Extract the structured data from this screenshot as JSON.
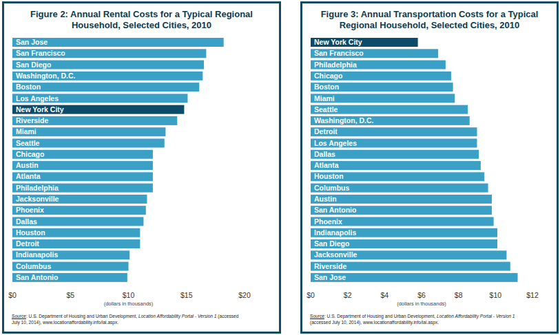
{
  "chart_data": [
    {
      "type": "bar",
      "orientation": "horizontal",
      "title": "Figure 2: Annual Rental Costs for a Typical Regional Household, Selected Cities, 2010",
      "categories": [
        "San Jose",
        "San Francisco",
        "San Diego",
        "Washington, D.C.",
        "Boston",
        "Los Angeles",
        "New York City",
        "Riverside",
        "Miami",
        "Seattle",
        "Chicago",
        "Austin",
        "Atlanta",
        "Philadelphia",
        "Jacksonville",
        "Phoenix",
        "Dallas",
        "Houston",
        "Detroit",
        "Indianapolis",
        "Columbus",
        "San Antonio"
      ],
      "values": [
        18.2,
        16.7,
        16.5,
        16.4,
        16.1,
        15.1,
        14.8,
        14.2,
        13.2,
        13.1,
        12.1,
        12.1,
        12.1,
        12.1,
        11.6,
        11.5,
        11.3,
        11.0,
        11.0,
        10.1,
        10.0,
        9.9
      ],
      "colors": [
        "#3aa0c5",
        "#3aa0c5",
        "#3aa0c5",
        "#3aa0c5",
        "#3aa0c5",
        "#3aa0c5",
        "#0d4c68",
        "#3aa0c5",
        "#3aa0c5",
        "#3aa0c5",
        "#3aa0c5",
        "#3aa0c5",
        "#3aa0c5",
        "#3aa0c5",
        "#3aa0c5",
        "#3aa0c5",
        "#3aa0c5",
        "#3aa0c5",
        "#3aa0c5",
        "#3aa0c5",
        "#3aa0c5",
        "#3aa0c5"
      ],
      "xlim": [
        0,
        20
      ],
      "xticks": [
        {
          "value": 0,
          "label": "$0"
        },
        {
          "value": 5,
          "label": "$5"
        },
        {
          "value": 10,
          "label": "$10"
        },
        {
          "value": 15,
          "label": "$15"
        },
        {
          "value": 20,
          "label": "$20"
        }
      ],
      "x_label": "(dollars in thousands)",
      "grid": false,
      "source": [
        "Source",
        ": U.S. Department of Housing and Urban Development, ",
        "Location Affordability Portal - Version 1",
        " (accessed July 10, 2014), www.locationaffordability.info/lai.aspx."
      ]
    },
    {
      "type": "bar",
      "orientation": "horizontal",
      "title": "Figure 3: Annual Transportation Costs for a Typical Regional Household, Selected Cities, 2010",
      "categories": [
        "New York City",
        "San Francisco",
        "Philadelphia",
        "Chicago",
        "Boston",
        "Miami",
        "Seattle",
        "Washington, D.C.",
        "Detroit",
        "Los Angeles",
        "Dallas",
        "Atlanta",
        "Houston",
        "Columbus",
        "Austin",
        "San Antonio",
        "Phoenix",
        "Indianapolis",
        "San Diego",
        "Jacksonville",
        "Riverside",
        "San Jose"
      ],
      "values": [
        5.8,
        6.9,
        7.3,
        7.6,
        7.7,
        7.8,
        8.5,
        8.6,
        9.0,
        9.0,
        9.1,
        9.2,
        9.4,
        9.6,
        9.8,
        9.8,
        9.9,
        10.1,
        10.1,
        10.6,
        10.8,
        11.2
      ],
      "colors": [
        "#0d4c68",
        "#3aa0c5",
        "#3aa0c5",
        "#3aa0c5",
        "#3aa0c5",
        "#3aa0c5",
        "#3aa0c5",
        "#3aa0c5",
        "#3aa0c5",
        "#3aa0c5",
        "#3aa0c5",
        "#3aa0c5",
        "#3aa0c5",
        "#3aa0c5",
        "#3aa0c5",
        "#3aa0c5",
        "#3aa0c5",
        "#3aa0c5",
        "#3aa0c5",
        "#3aa0c5",
        "#3aa0c5",
        "#3aa0c5"
      ],
      "xlim": [
        0,
        12
      ],
      "xticks": [
        {
          "value": 0,
          "label": "$0"
        },
        {
          "value": 2,
          "label": "$2"
        },
        {
          "value": 4,
          "label": "$4"
        },
        {
          "value": 6,
          "label": "$6"
        },
        {
          "value": 8,
          "label": "$8"
        },
        {
          "value": 10,
          "label": "$10"
        },
        {
          "value": 12,
          "label": "$12"
        }
      ],
      "x_label": "(dollars in thousands)",
      "grid": false,
      "source": [
        "Source",
        ": U.S. Department of Housing and Urban Development, ",
        "Location Affordability Portal - Version 1",
        " (accessed July 10, 2014), www.locationaffordability.info/lai.aspx."
      ]
    }
  ]
}
